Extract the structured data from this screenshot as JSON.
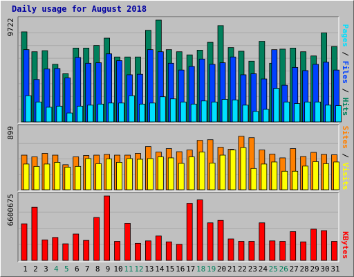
{
  "title": "Daily usage for August 2018",
  "colors": {
    "hits": "#00805c",
    "files": "#0040ff",
    "pages": "#00e0ff",
    "visits": "#ffff00",
    "sites": "#ff8000",
    "kbytes": "#ff0000",
    "weekend_day": "#00805c",
    "weekday_day": "#000000"
  },
  "side_labels": {
    "top": [
      {
        "text": "Pages",
        "color": "#00e0ff"
      },
      {
        "text": " / ",
        "color": "#000000"
      },
      {
        "text": "Files",
        "color": "#0040ff"
      },
      {
        "text": " / ",
        "color": "#000000"
      },
      {
        "text": "Hits",
        "color": "#00805c"
      }
    ],
    "middle": [
      {
        "text": "Sites",
        "color": "#ff8000"
      },
      {
        "text": " / ",
        "color": "#000000"
      },
      {
        "text": "Visits",
        "color": "#ffff00"
      }
    ],
    "bottom": [
      {
        "text": "KBytes",
        "color": "#ff0000"
      }
    ]
  },
  "chart_data": {
    "type": "bar",
    "title": "Daily usage for August 2018",
    "categories": [
      "1",
      "2",
      "3",
      "4",
      "5",
      "6",
      "7",
      "8",
      "9",
      "10",
      "11",
      "12",
      "13",
      "14",
      "15",
      "16",
      "17",
      "18",
      "19",
      "20",
      "21",
      "22",
      "23",
      "24",
      "25",
      "26",
      "27",
      "28",
      "29",
      "30",
      "31"
    ],
    "weekend_days": [
      "4",
      "5",
      "11",
      "12",
      "18",
      "19",
      "25",
      "26"
    ],
    "panels": [
      {
        "name": "hits-files-pages",
        "ymax": 9722,
        "ymax_label": "9722",
        "series": [
          {
            "name": "Hits",
            "key": "hits",
            "values": [
              8600,
              6700,
              6800,
              5500,
              4600,
              7050,
              7050,
              7300,
              8000,
              6200,
              6200,
              6200,
              8750,
              9722,
              6900,
              6700,
              6400,
              6850,
              7600,
              9200,
              7100,
              6750,
              5800,
              7700,
              5600,
              6950,
              7050,
              6700,
              6300,
              8500,
              7200
            ]
          },
          {
            "name": "Files",
            "key": "files",
            "values": [
              6900,
              4050,
              5050,
              5100,
              4200,
              6150,
              5600,
              5650,
              6500,
              5850,
              4500,
              4550,
              6900,
              6700,
              5600,
              4950,
              5300,
              6000,
              5500,
              5650,
              6200,
              4500,
              4600,
              4100,
              6900,
              3500,
              5200,
              4900,
              5500,
              5700,
              4950
            ]
          },
          {
            "name": "Pages",
            "key": "pages",
            "values": [
              2500,
              1900,
              1400,
              1500,
              850,
              1500,
              1600,
              1700,
              1800,
              1800,
              2500,
              1700,
              1800,
              2400,
              2200,
              1900,
              1700,
              2000,
              1900,
              2150,
              2100,
              1600,
              1000,
              1200,
              3200,
              1900,
              1750,
              1900,
              1900,
              1600,
              1550
            ]
          }
        ]
      },
      {
        "name": "sites-visits",
        "ymax": 899,
        "ymax_label": "899",
        "series": [
          {
            "name": "Sites",
            "key": "sites",
            "values": [
              505,
              480,
              530,
              505,
              365,
              480,
              500,
              505,
              515,
              505,
              505,
              530,
              630,
              550,
              600,
              555,
              580,
              720,
              730,
              620,
              590,
              780,
              760,
              580,
              520,
              465,
              600,
              485,
              545,
              515,
              510
            ]
          },
          {
            "name": "Visits",
            "key": "visits",
            "values": [
              375,
              340,
              375,
              400,
              330,
              340,
              455,
              380,
              450,
              400,
              455,
              445,
              455,
              480,
              465,
              385,
              480,
              550,
              390,
              505,
              580,
              615,
              310,
              375,
              405,
              270,
              270,
              345,
              410,
              380,
              405
            ]
          }
        ]
      },
      {
        "name": "kbytes",
        "ymax": 6600675,
        "ymax_label": "6600675",
        "series": [
          {
            "name": "KBytes",
            "key": "kbytes",
            "values": [
              3750000,
              5450000,
              2100000,
              2350000,
              1700000,
              2700000,
              2050000,
              4400000,
              6600675,
              1950000,
              3800000,
              1750000,
              2000000,
              2500000,
              1900000,
              1650000,
              5850000,
              6200000,
              3850000,
              4100000,
              2200000,
              1950000,
              1950000,
              3850000,
              2000000,
              1950000,
              2950000,
              1900000,
              3200000,
              3050000,
              1950000
            ]
          }
        ]
      }
    ],
    "grid": true,
    "legend": "right"
  }
}
